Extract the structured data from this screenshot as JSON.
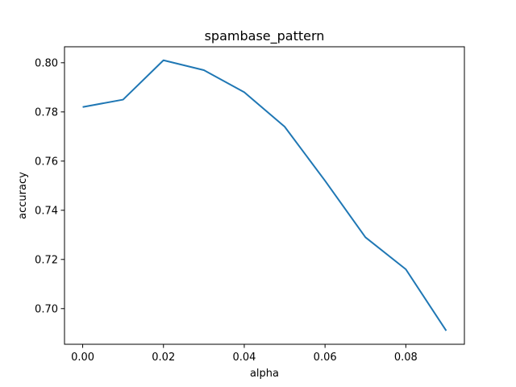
{
  "chart_data": {
    "type": "line",
    "title": "spambase_pattern",
    "xlabel": "alpha",
    "ylabel": "accuracy",
    "x": [
      0.0,
      0.01,
      0.02,
      0.03,
      0.04,
      0.05,
      0.06,
      0.07,
      0.08,
      0.09
    ],
    "series": [
      {
        "values": [
          0.782,
          0.785,
          0.801,
          0.797,
          0.788,
          0.774,
          0.752,
          0.729,
          0.716,
          0.691
        ],
        "color": "#1f77b4"
      }
    ],
    "xlim": [
      -0.0045,
      0.0945
    ],
    "ylim": [
      0.6855,
      0.8065
    ],
    "xticks": [
      {
        "value": 0.0,
        "label": "0.00"
      },
      {
        "value": 0.02,
        "label": "0.02"
      },
      {
        "value": 0.04,
        "label": "0.04"
      },
      {
        "value": 0.06,
        "label": "0.06"
      },
      {
        "value": 0.08,
        "label": "0.08"
      }
    ],
    "yticks": [
      {
        "value": 0.7,
        "label": "0.70"
      },
      {
        "value": 0.72,
        "label": "0.72"
      },
      {
        "value": 0.74,
        "label": "0.74"
      },
      {
        "value": 0.76,
        "label": "0.76"
      },
      {
        "value": 0.78,
        "label": "0.78"
      },
      {
        "value": 0.8,
        "label": "0.80"
      }
    ],
    "grid": false,
    "legend": "none"
  }
}
